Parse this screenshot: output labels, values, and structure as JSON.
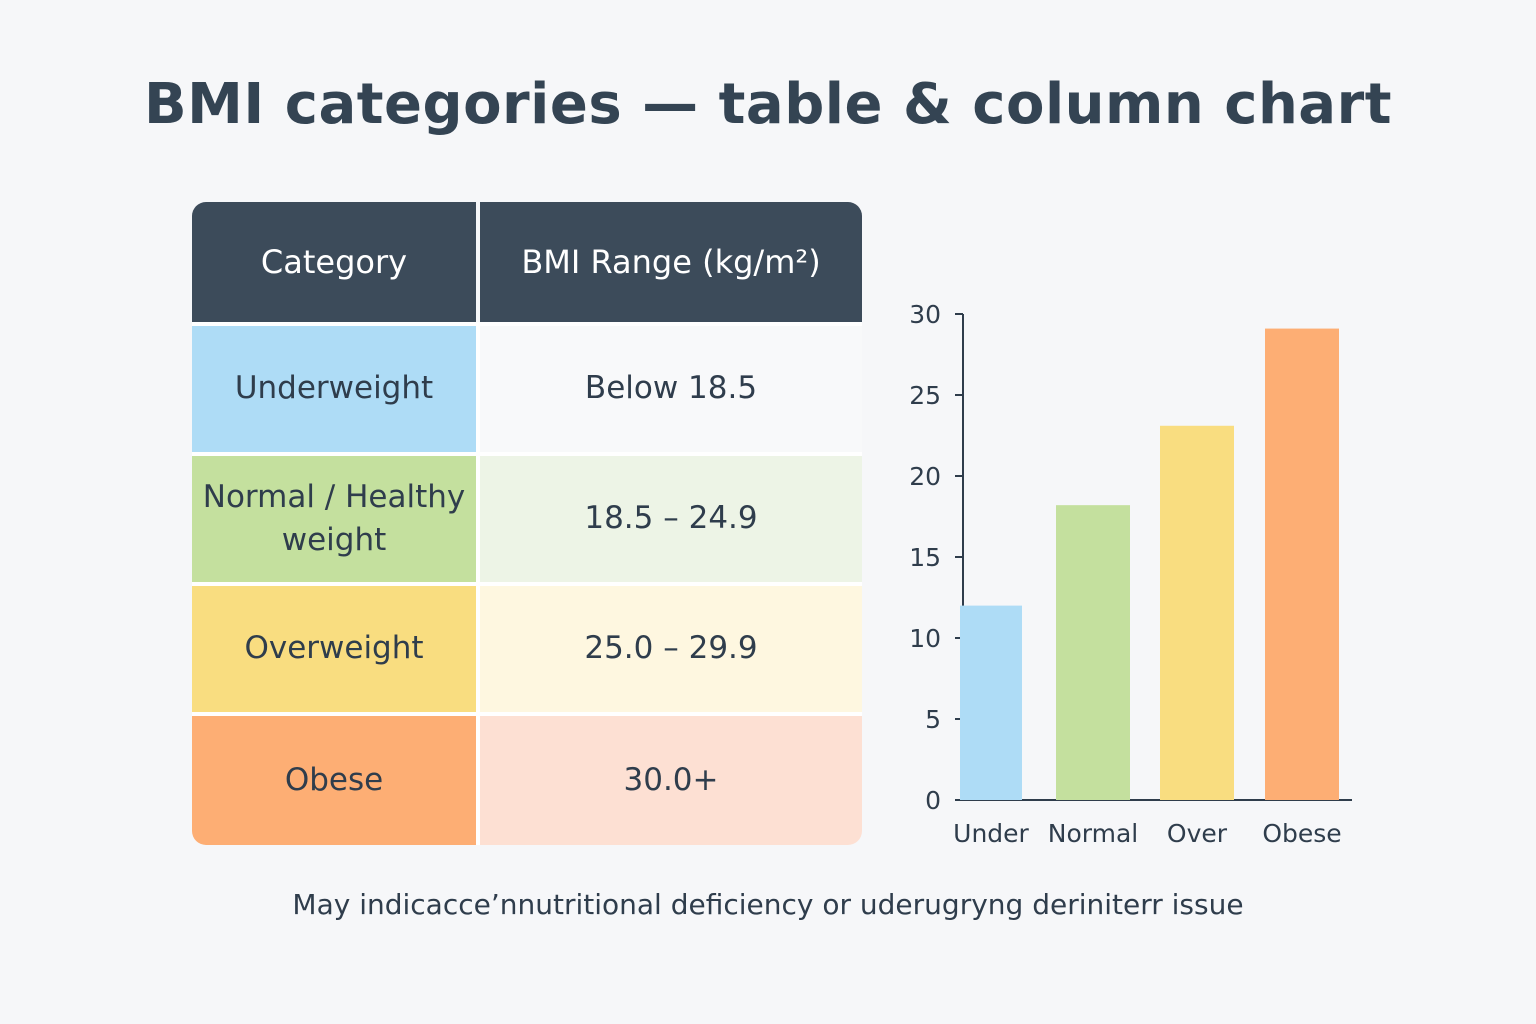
{
  "title": "BMI categories — table & column chart",
  "table": {
    "headers": [
      "Category",
      "BMI Range (kg/m²)"
    ],
    "rows": [
      {
        "category": "Underweight",
        "range": "Below 18.5",
        "color": "#aedcf6",
        "tint": "#f8f9fa"
      },
      {
        "category": "Normal / Healthy weight",
        "range": "18.5 – 24.9",
        "color": "#c4e09e",
        "tint": "#edf4e6"
      },
      {
        "category": "Overweight",
        "range": "25.0 – 29.9",
        "color": "#f9dd80",
        "tint": "#fef7e0"
      },
      {
        "category": "Obese",
        "range": "30.0+",
        "color": "#fdae74",
        "tint": "#fde0d3"
      }
    ]
  },
  "chart_data": {
    "type": "bar",
    "title": "",
    "xlabel": "",
    "ylabel": "",
    "categories": [
      "Under",
      "Normal",
      "Over",
      "Obese"
    ],
    "values": [
      12,
      18.2,
      23.1,
      29.1
    ],
    "colors": [
      "#aedcf6",
      "#c4e09e",
      "#f9dd80",
      "#fdae74"
    ],
    "ylim": [
      0,
      30
    ],
    "yticks": [
      0,
      5,
      10,
      15,
      20,
      25,
      30
    ],
    "grid": false
  },
  "footnote": "May indicacce’nnutritional  deficiency or uderugryng deriniterr issue"
}
